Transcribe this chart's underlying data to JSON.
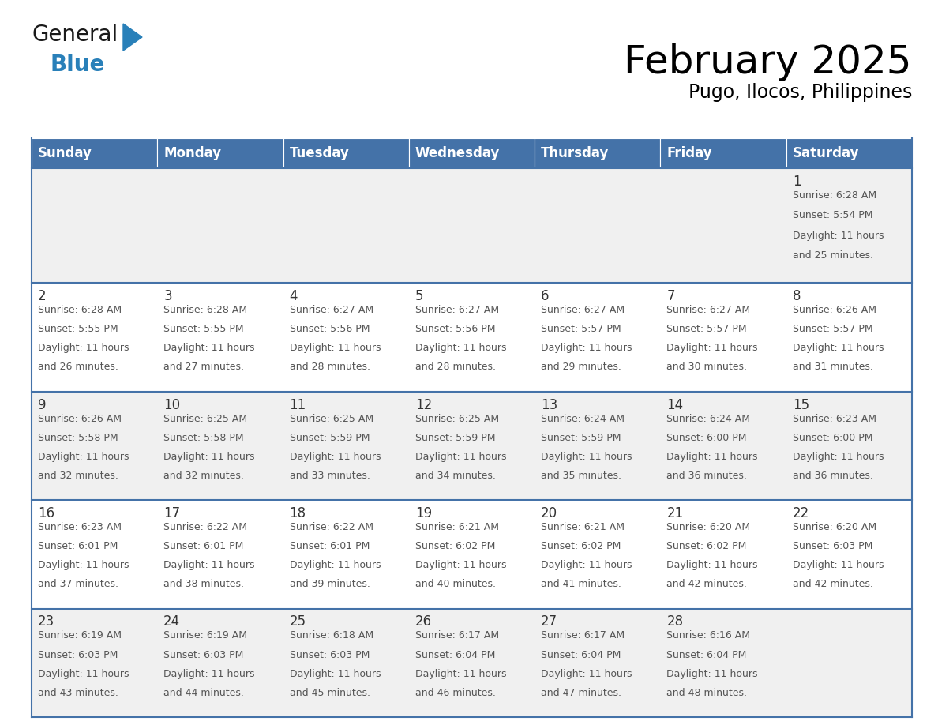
{
  "title": "February 2025",
  "subtitle": "Pugo, Ilocos, Philippines",
  "header_bg_color": "#4472A8",
  "header_text_color": "#FFFFFF",
  "day_names": [
    "Sunday",
    "Monday",
    "Tuesday",
    "Wednesday",
    "Thursday",
    "Friday",
    "Saturday"
  ],
  "row_bg_colors": [
    "#F0F0F0",
    "#FFFFFF",
    "#F0F0F0",
    "#FFFFFF",
    "#F0F0F0"
  ],
  "divider_color": "#4472A8",
  "text_color": "#555555",
  "day_num_color": "#333333",
  "calendar_data": [
    [
      {
        "day": null,
        "sunrise": null,
        "sunset": null,
        "daylight": null
      },
      {
        "day": null,
        "sunrise": null,
        "sunset": null,
        "daylight": null
      },
      {
        "day": null,
        "sunrise": null,
        "sunset": null,
        "daylight": null
      },
      {
        "day": null,
        "sunrise": null,
        "sunset": null,
        "daylight": null
      },
      {
        "day": null,
        "sunrise": null,
        "sunset": null,
        "daylight": null
      },
      {
        "day": null,
        "sunrise": null,
        "sunset": null,
        "daylight": null
      },
      {
        "day": 1,
        "sunrise": "6:28 AM",
        "sunset": "5:54 PM",
        "daylight": "11 hours\nand 25 minutes."
      }
    ],
    [
      {
        "day": 2,
        "sunrise": "6:28 AM",
        "sunset": "5:55 PM",
        "daylight": "11 hours\nand 26 minutes."
      },
      {
        "day": 3,
        "sunrise": "6:28 AM",
        "sunset": "5:55 PM",
        "daylight": "11 hours\nand 27 minutes."
      },
      {
        "day": 4,
        "sunrise": "6:27 AM",
        "sunset": "5:56 PM",
        "daylight": "11 hours\nand 28 minutes."
      },
      {
        "day": 5,
        "sunrise": "6:27 AM",
        "sunset": "5:56 PM",
        "daylight": "11 hours\nand 28 minutes."
      },
      {
        "day": 6,
        "sunrise": "6:27 AM",
        "sunset": "5:57 PM",
        "daylight": "11 hours\nand 29 minutes."
      },
      {
        "day": 7,
        "sunrise": "6:27 AM",
        "sunset": "5:57 PM",
        "daylight": "11 hours\nand 30 minutes."
      },
      {
        "day": 8,
        "sunrise": "6:26 AM",
        "sunset": "5:57 PM",
        "daylight": "11 hours\nand 31 minutes."
      }
    ],
    [
      {
        "day": 9,
        "sunrise": "6:26 AM",
        "sunset": "5:58 PM",
        "daylight": "11 hours\nand 32 minutes."
      },
      {
        "day": 10,
        "sunrise": "6:25 AM",
        "sunset": "5:58 PM",
        "daylight": "11 hours\nand 32 minutes."
      },
      {
        "day": 11,
        "sunrise": "6:25 AM",
        "sunset": "5:59 PM",
        "daylight": "11 hours\nand 33 minutes."
      },
      {
        "day": 12,
        "sunrise": "6:25 AM",
        "sunset": "5:59 PM",
        "daylight": "11 hours\nand 34 minutes."
      },
      {
        "day": 13,
        "sunrise": "6:24 AM",
        "sunset": "5:59 PM",
        "daylight": "11 hours\nand 35 minutes."
      },
      {
        "day": 14,
        "sunrise": "6:24 AM",
        "sunset": "6:00 PM",
        "daylight": "11 hours\nand 36 minutes."
      },
      {
        "day": 15,
        "sunrise": "6:23 AM",
        "sunset": "6:00 PM",
        "daylight": "11 hours\nand 36 minutes."
      }
    ],
    [
      {
        "day": 16,
        "sunrise": "6:23 AM",
        "sunset": "6:01 PM",
        "daylight": "11 hours\nand 37 minutes."
      },
      {
        "day": 17,
        "sunrise": "6:22 AM",
        "sunset": "6:01 PM",
        "daylight": "11 hours\nand 38 minutes."
      },
      {
        "day": 18,
        "sunrise": "6:22 AM",
        "sunset": "6:01 PM",
        "daylight": "11 hours\nand 39 minutes."
      },
      {
        "day": 19,
        "sunrise": "6:21 AM",
        "sunset": "6:02 PM",
        "daylight": "11 hours\nand 40 minutes."
      },
      {
        "day": 20,
        "sunrise": "6:21 AM",
        "sunset": "6:02 PM",
        "daylight": "11 hours\nand 41 minutes."
      },
      {
        "day": 21,
        "sunrise": "6:20 AM",
        "sunset": "6:02 PM",
        "daylight": "11 hours\nand 42 minutes."
      },
      {
        "day": 22,
        "sunrise": "6:20 AM",
        "sunset": "6:03 PM",
        "daylight": "11 hours\nand 42 minutes."
      }
    ],
    [
      {
        "day": 23,
        "sunrise": "6:19 AM",
        "sunset": "6:03 PM",
        "daylight": "11 hours\nand 43 minutes."
      },
      {
        "day": 24,
        "sunrise": "6:19 AM",
        "sunset": "6:03 PM",
        "daylight": "11 hours\nand 44 minutes."
      },
      {
        "day": 25,
        "sunrise": "6:18 AM",
        "sunset": "6:03 PM",
        "daylight": "11 hours\nand 45 minutes."
      },
      {
        "day": 26,
        "sunrise": "6:17 AM",
        "sunset": "6:04 PM",
        "daylight": "11 hours\nand 46 minutes."
      },
      {
        "day": 27,
        "sunrise": "6:17 AM",
        "sunset": "6:04 PM",
        "daylight": "11 hours\nand 47 minutes."
      },
      {
        "day": 28,
        "sunrise": "6:16 AM",
        "sunset": "6:04 PM",
        "daylight": "11 hours\nand 48 minutes."
      },
      {
        "day": null,
        "sunrise": null,
        "sunset": null,
        "daylight": null
      }
    ]
  ],
  "logo_general_color": "#1a1a1a",
  "logo_blue_color": "#2980B9",
  "logo_triangle_color": "#2980B9",
  "title_fontsize": 36,
  "subtitle_fontsize": 17,
  "header_fontsize": 12,
  "day_num_fontsize": 12,
  "cell_text_fontsize": 9
}
